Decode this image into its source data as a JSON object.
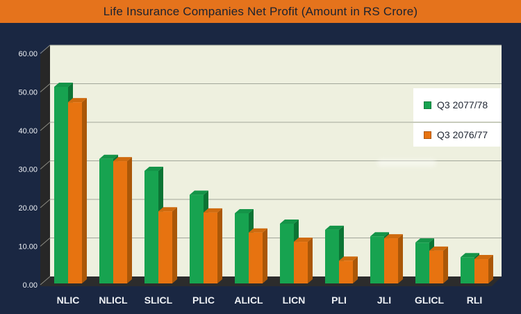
{
  "title": "Life Insurance Companies Net Profit (Amount in RS Crore)",
  "colors": {
    "background": "#1a2742",
    "title_bar": "#e5731c",
    "title_text": "#1a2230",
    "plot_back_wall": "#eef0df",
    "side_wall": "#272727",
    "floor": "#2c2c2c",
    "gridline": "#a2a69a",
    "wall_tick": "#8c8c84",
    "axis_text": "#eef1f5",
    "legend_bg": "#ffffff",
    "legend_text": "#1f2633",
    "green_front": "#17a350",
    "green_top": "#149448",
    "green_side": "#0c7434",
    "orange_front": "#e77310",
    "orange_top": "#cf6a0e",
    "orange_side": "#aa5708"
  },
  "chart_data": {
    "type": "bar",
    "style": "3d-clustered-column",
    "title": "Life Insurance Companies Net Profit (Amount in RS Crore)",
    "categories": [
      "NLIC",
      "NLICL",
      "SLICL",
      "PLIC",
      "ALICL",
      "LICN",
      "PLI",
      "JLI",
      "GLICL",
      "RLI"
    ],
    "series": [
      {
        "name": "Q3 2077/78",
        "color": "#17a350",
        "values": [
          51.0,
          32.3,
          29.2,
          23.0,
          18.2,
          15.5,
          13.9,
          12.2,
          10.6,
          6.8
        ]
      },
      {
        "name": "Q3 2076/77",
        "color": "#e77310",
        "values": [
          47.0,
          31.7,
          18.7,
          18.4,
          13.2,
          10.8,
          5.9,
          11.7,
          8.5,
          6.3
        ]
      }
    ],
    "xlabel": "",
    "ylabel": "",
    "ylim": [
      0,
      60
    ],
    "ytick_step": 10,
    "ytick_labels": [
      "0.00",
      "10.00",
      "20.00",
      "30.00",
      "40.00",
      "50.00",
      "60.00"
    ],
    "grid": true,
    "legend_position": "inside-right"
  }
}
